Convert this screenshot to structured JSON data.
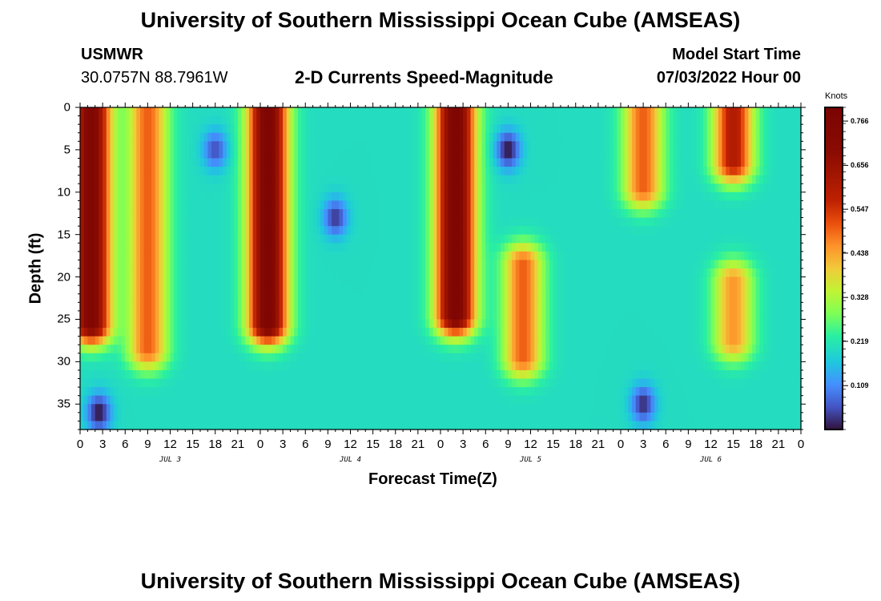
{
  "header": {
    "title": "University of Southern Mississippi Ocean Cube (AMSEAS)",
    "station_id": "USMWR",
    "station_coords": "30.0757N  88.7961W",
    "subtitle": "2-D Currents Speed-Magnitude",
    "start_label": "Model Start Time",
    "start_value": "07/03/2022 Hour 00"
  },
  "footer": {
    "title": "University of Southern Mississippi Ocean Cube (AMSEAS)"
  },
  "chart_data": {
    "type": "heatmap",
    "title": "2-D Currents Speed-Magnitude",
    "xlabel": "Forecast Time(Z)",
    "ylabel": "Depth (ft)",
    "x_range_hours": [
      0,
      96
    ],
    "y_range_ft": [
      0,
      38
    ],
    "x_tick_labels": [
      "0",
      "3",
      "6",
      "9",
      "12",
      "15",
      "18",
      "21",
      "0",
      "3",
      "6",
      "9",
      "12",
      "15",
      "18",
      "21",
      "0",
      "3",
      "6",
      "9",
      "12",
      "15",
      "18",
      "21",
      "0",
      "3",
      "6",
      "9",
      "12",
      "15",
      "18",
      "21",
      "0"
    ],
    "y_ticks": [
      0,
      5,
      10,
      15,
      20,
      25,
      30,
      35
    ],
    "day_labels": [
      {
        "label": "JUL 3",
        "hour": 12
      },
      {
        "label": "JUL 4",
        "hour": 36
      },
      {
        "label": "JUL 5",
        "hour": 60
      },
      {
        "label": "JUL 6",
        "hour": 84
      }
    ],
    "colorbar": {
      "units": "Knots",
      "ticks": [
        "0.766",
        "0.656",
        "0.547",
        "0.438",
        "0.328",
        "0.219",
        "0.109"
      ],
      "tick_values": [
        0.766,
        0.656,
        0.547,
        0.438,
        0.328,
        0.219,
        0.109
      ],
      "range": [
        0.0,
        0.8
      ]
    },
    "features": [
      {
        "hour": 1.5,
        "depth_top": 0,
        "depth_bottom": 26,
        "speed": 0.75
      },
      {
        "hour": 9,
        "depth_top": 0,
        "depth_bottom": 29,
        "speed": 0.5
      },
      {
        "hour": 18,
        "depth": 5,
        "speed": 0.05
      },
      {
        "hour": 25,
        "depth_top": 0,
        "depth_bottom": 26,
        "speed": 0.77
      },
      {
        "hour": 34,
        "depth": 13,
        "speed": 0.03
      },
      {
        "hour": 50,
        "depth_top": 0,
        "depth_bottom": 25,
        "speed": 0.77
      },
      {
        "hour": 57,
        "depth": 5,
        "speed": 0.0
      },
      {
        "hour": 59,
        "depth_top": 18,
        "depth_bottom": 30,
        "speed": 0.5
      },
      {
        "hour": 75,
        "depth_top": 0,
        "depth_bottom": 10,
        "speed": 0.5
      },
      {
        "hour": 87,
        "depth_top": 0,
        "depth_bottom": 7,
        "speed": 0.6
      },
      {
        "hour": 87,
        "depth_top": 20,
        "depth_bottom": 28,
        "speed": 0.45
      },
      {
        "hour": 2.5,
        "depth": 36,
        "speed": 0.0
      },
      {
        "hour": 75,
        "depth": 35,
        "speed": 0.02
      }
    ]
  }
}
